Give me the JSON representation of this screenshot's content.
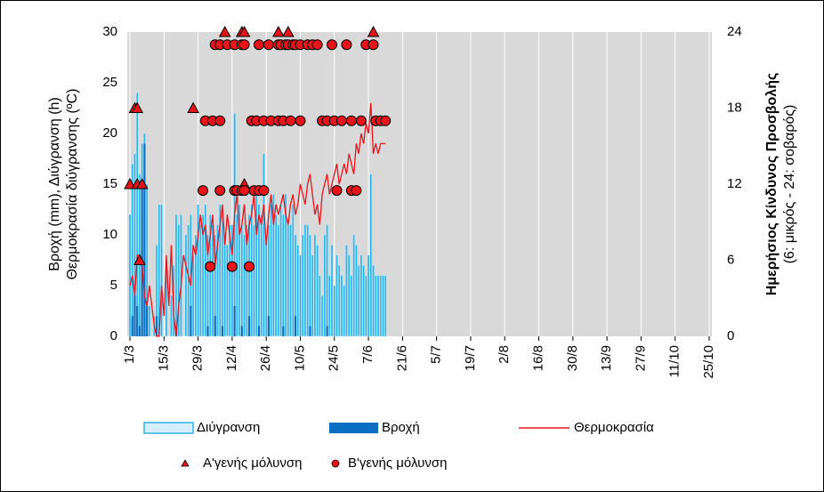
{
  "chart_data": {
    "type": "combo",
    "ylabel_lines": [
      "Βροχή (mm), Διύγρανση (h)",
      "Θερμοκρασία διύγρανσης (ºC)"
    ],
    "y2label": "Ημερήσιος Κίνδυνος Προσβολής",
    "y2sublabel": "(6: μικρός - 24: σοβαρός)",
    "x": [
      "1/3",
      "2/3",
      "3/3",
      "4/3",
      "5/3",
      "6/3",
      "7/3",
      "8/3",
      "9/3",
      "10/3",
      "11/3",
      "12/3",
      "13/3",
      "14/3",
      "15/3",
      "16/3",
      "17/3",
      "18/3",
      "19/3",
      "20/3",
      "21/3",
      "22/3",
      "23/3",
      "24/3",
      "25/3",
      "26/3",
      "27/3",
      "28/3",
      "29/3",
      "30/3",
      "31/3",
      "1/4",
      "2/4",
      "3/4",
      "4/4",
      "5/4",
      "6/4",
      "7/4",
      "8/4",
      "9/4",
      "10/4",
      "11/4",
      "12/4",
      "13/4",
      "14/4",
      "15/4",
      "16/4",
      "17/4",
      "18/4",
      "19/4",
      "20/4",
      "21/4",
      "22/4",
      "23/4",
      "24/4",
      "25/4",
      "26/4",
      "27/4",
      "28/4",
      "29/4",
      "30/4",
      "1/5",
      "2/5",
      "3/5",
      "4/5",
      "5/5",
      "6/5",
      "7/5",
      "8/5",
      "9/5",
      "10/5",
      "11/5",
      "12/5",
      "13/5",
      "14/5",
      "15/5",
      "16/5",
      "17/5",
      "18/5",
      "19/5",
      "20/5",
      "21/5",
      "22/5",
      "23/5",
      "24/5",
      "25/5",
      "26/5",
      "27/5",
      "28/5",
      "29/5",
      "30/5",
      "31/5",
      "1/6",
      "2/6",
      "3/6",
      "4/6",
      "5/6",
      "6/6",
      "7/6",
      "8/6",
      "9/6",
      "10/6",
      "11/6",
      "12/6",
      "13/6",
      "14/6"
    ],
    "xlim": [
      "1/3",
      "25/10"
    ],
    "xticks": [
      "1/3",
      "15/3",
      "29/3",
      "12/4",
      "26/4",
      "10/5",
      "24/5",
      "7/6",
      "21/6",
      "5/7",
      "19/7",
      "2/8",
      "16/8",
      "30/8",
      "13/9",
      "27/9",
      "11/10",
      "25/10"
    ],
    "ylim": [
      0,
      30
    ],
    "yticks": [
      0,
      5,
      10,
      15,
      20,
      25,
      30
    ],
    "y2lim": [
      0,
      24
    ],
    "y2ticks": [
      0,
      6,
      12,
      18,
      24
    ],
    "grid": true,
    "legend": "bottom",
    "series": [
      {
        "name": "Διύγρανση",
        "type": "bar",
        "color": "#2fb4e9",
        "edge": "#c9ecfa",
        "values": [
          12,
          17,
          18,
          24,
          16,
          19,
          20,
          15,
          3,
          0,
          2,
          9,
          13,
          13,
          0,
          7,
          0,
          4,
          7,
          12,
          11,
          12,
          0,
          10,
          11,
          12,
          8,
          10,
          13,
          11,
          12,
          13,
          10,
          12,
          11,
          10,
          11,
          13,
          12,
          10,
          9,
          11,
          11,
          22,
          12,
          13,
          11,
          10,
          11,
          12,
          13,
          11,
          14,
          13,
          12,
          18,
          10,
          11,
          13,
          14,
          12,
          11,
          13,
          12,
          14,
          11,
          11,
          13,
          10,
          9,
          8,
          10,
          11,
          11,
          10,
          8,
          10,
          9,
          6,
          4,
          10,
          11,
          6,
          9,
          5,
          8,
          7,
          6,
          5,
          9,
          8,
          6,
          10,
          9,
          7,
          8,
          7,
          6,
          8,
          16,
          7,
          6,
          6,
          6,
          6,
          6
        ]
      },
      {
        "name": "Βροχή",
        "type": "bar",
        "color": "#0a6fc2",
        "values": [
          0,
          2,
          4,
          3,
          1,
          15,
          19,
          3,
          0,
          0,
          0,
          2,
          0,
          0,
          0,
          0,
          0,
          0,
          0,
          1,
          0,
          0,
          0,
          0,
          0,
          3,
          0,
          0,
          0,
          0,
          0,
          0,
          1,
          0,
          0,
          2,
          0,
          0,
          1,
          0,
          0,
          0,
          0,
          3,
          0,
          0,
          1,
          0,
          0,
          2,
          0,
          0,
          0,
          1,
          0,
          0,
          0,
          2,
          0,
          0,
          0,
          0,
          0,
          1,
          0,
          0,
          0,
          0,
          2,
          0,
          0,
          0,
          0,
          0,
          1,
          0,
          0,
          0,
          0,
          0,
          0,
          1,
          0,
          0,
          0,
          0,
          0,
          0,
          0,
          0,
          0,
          0,
          0,
          0,
          0,
          0,
          0,
          0,
          0,
          0,
          0,
          0,
          0,
          0,
          0,
          0
        ]
      },
      {
        "name": "Θερμοκρασία",
        "type": "line",
        "color": "#e8141b",
        "values": [
          5,
          6,
          4,
          8,
          8,
          7,
          4,
          3,
          5,
          3,
          1,
          0,
          0,
          5,
          2,
          8,
          3,
          9,
          2,
          0,
          3,
          5,
          8,
          7,
          6,
          5,
          9,
          8,
          10,
          12,
          10,
          11,
          8,
          10,
          12,
          7,
          9,
          11,
          13,
          9,
          12,
          10,
          8,
          12,
          14,
          10,
          11,
          13,
          9,
          11,
          12,
          14,
          10,
          12,
          11,
          13,
          9,
          12,
          14,
          11,
          13,
          12,
          13,
          14,
          12,
          11,
          13,
          14,
          12,
          13,
          15,
          14,
          13,
          15,
          16,
          14,
          12,
          13,
          11,
          14,
          15,
          16,
          14,
          15,
          16,
          17,
          15,
          16,
          17,
          16,
          18,
          17,
          16,
          19,
          18,
          20,
          19,
          21,
          20,
          23,
          18,
          19,
          18,
          19,
          19,
          19
        ]
      },
      {
        "name": "Α'γενής μόλυνση",
        "type": "scatter",
        "marker": "triangle",
        "axis": "y2",
        "color": "#e8141b",
        "x": [
          "1/3",
          "3/3",
          "4/3",
          "4/3",
          "6/3",
          "5/3",
          "27/3",
          "9/4",
          "16/4",
          "17/4",
          "17/4",
          "1/5",
          "5/5",
          "9/6"
        ],
        "values": [
          12,
          18,
          18,
          12,
          12,
          6,
          18,
          24,
          24,
          24,
          12,
          24,
          24,
          24
        ]
      },
      {
        "name": "Β'γενής μόλυνση",
        "type": "scatter",
        "marker": "circle",
        "axis": "y2",
        "color": "#e8141b",
        "x": [
          "5/4",
          "7/4",
          "10/4",
          "13/4",
          "16/4",
          "17/4",
          "23/4",
          "27/4",
          "1/5",
          "2/5",
          "4/5",
          "5/5",
          "7/5",
          "8/5",
          "10/5",
          "13/5",
          "15/5",
          "17/5",
          "23/5",
          "29/5",
          "6/6",
          "9/6",
          "1/4",
          "4/4",
          "7/4",
          "20/4",
          "22/4",
          "25/4",
          "28/4",
          "1/5",
          "3/5",
          "6/5",
          "10/5",
          "19/5",
          "21/5",
          "24/5",
          "27/5",
          "31/5",
          "4/6",
          "10/6",
          "12/6",
          "14/6",
          "31/3",
          "7/4",
          "13/4",
          "14/4",
          "16/4",
          "17/4",
          "21/4",
          "23/4",
          "25/4",
          "25/5",
          "31/5",
          "2/6",
          "3/4",
          "12/4",
          "19/4"
        ],
        "values": [
          23,
          23,
          23,
          23,
          23,
          23,
          23,
          23,
          23,
          23,
          23,
          23,
          23,
          23,
          23,
          23,
          23,
          23,
          23,
          23,
          23,
          23,
          17,
          17,
          17,
          17,
          17,
          17,
          17,
          17,
          17,
          17,
          17,
          17,
          17,
          17,
          17,
          17,
          17,
          17,
          17,
          17,
          11.5,
          11.5,
          11.5,
          11.5,
          11.5,
          11.5,
          11.5,
          11.5,
          11.5,
          11.5,
          11.5,
          11.5,
          5.5,
          5.5,
          5.5
        ]
      }
    ]
  }
}
